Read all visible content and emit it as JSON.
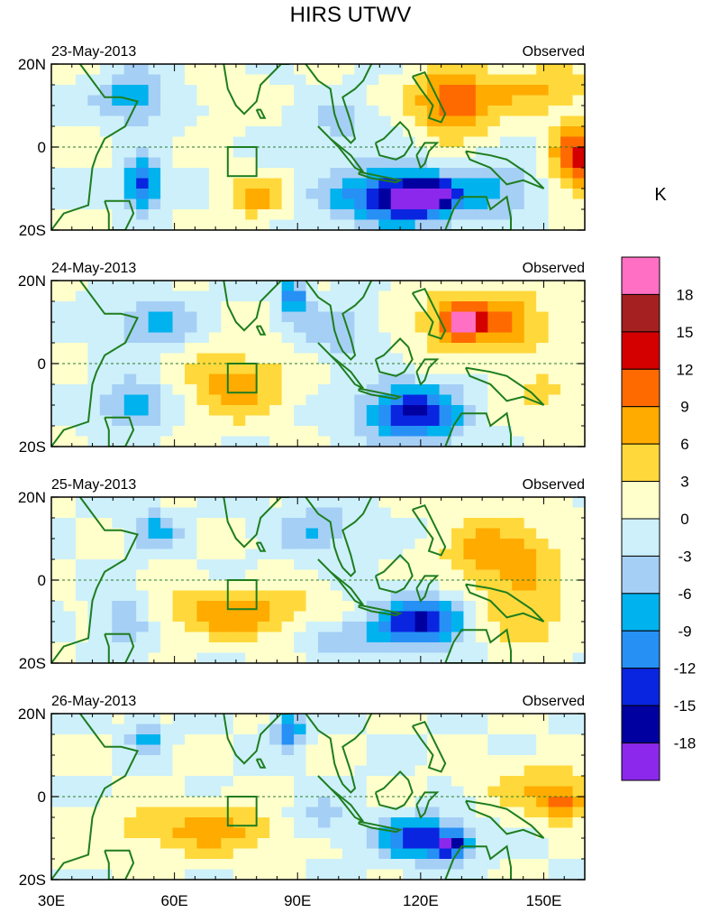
{
  "chart_data": {
    "type": "heatmap",
    "title": "HIRS UTWV",
    "unit_label": "K",
    "x_ticks": [
      "30E",
      "60E",
      "90E",
      "120E",
      "150E"
    ],
    "x_tick_values": [
      30,
      60,
      90,
      120,
      150
    ],
    "xlim": [
      30,
      160
    ],
    "y_ticks": [
      "20N",
      "0",
      "20S"
    ],
    "y_tick_values": [
      20,
      0,
      -20
    ],
    "ylim": [
      -20,
      20
    ],
    "colorbar": {
      "labels": [
        "18",
        "15",
        "12",
        "9",
        "6",
        "3",
        "0",
        "-3",
        "-6",
        "-9",
        "-12",
        "-15",
        "-18"
      ],
      "colors": [
        "#ff6fc4",
        "#a52020",
        "#d40000",
        "#ff6a00",
        "#ffab00",
        "#ffd93b",
        "#ffffcc",
        "#cdf0fa",
        "#a6cff5",
        "#00b2ee",
        "#2690f5",
        "#0a25e0",
        "#0000a0",
        "#8c28eb"
      ]
    },
    "target_box": {
      "lon": [
        73,
        80
      ],
      "lat": [
        -7,
        0
      ]
    },
    "panels": [
      {
        "date": "23-May-2013",
        "label": "Observed",
        "blobs": [
          {
            "lon": 115,
            "lat": -12,
            "rx": 16,
            "ry": 7,
            "v": -16
          },
          {
            "lon": 120,
            "lat": -12,
            "rx": 7,
            "ry": 3,
            "v": -19
          },
          {
            "lon": 52,
            "lat": -9,
            "rx": 4,
            "ry": 6,
            "v": -15
          },
          {
            "lon": 50,
            "lat": 12,
            "rx": 8,
            "ry": 6,
            "v": -9
          },
          {
            "lon": 80,
            "lat": -12,
            "rx": 8,
            "ry": 5,
            "v": 7
          },
          {
            "lon": 128,
            "lat": 11,
            "rx": 10,
            "ry": 8,
            "v": 12
          },
          {
            "lon": 158,
            "lat": -3,
            "rx": 6,
            "ry": 8,
            "v": 13
          },
          {
            "lon": 150,
            "lat": 14,
            "rx": 12,
            "ry": 6,
            "v": 6
          },
          {
            "lon": 72,
            "lat": 12,
            "rx": 8,
            "ry": 6,
            "v": 2
          },
          {
            "lon": 100,
            "lat": 5,
            "rx": 10,
            "ry": 6,
            "v": -4
          },
          {
            "lon": 140,
            "lat": -10,
            "rx": 8,
            "ry": 6,
            "v": -6
          }
        ]
      },
      {
        "date": "24-May-2013",
        "label": "Observed",
        "blobs": [
          {
            "lon": 118,
            "lat": -12,
            "rx": 12,
            "ry": 7,
            "v": -15
          },
          {
            "lon": 89,
            "lat": 16,
            "rx": 3,
            "ry": 4,
            "v": -13
          },
          {
            "lon": 55,
            "lat": 10,
            "rx": 10,
            "ry": 6,
            "v": -7
          },
          {
            "lon": 50,
            "lat": -10,
            "rx": 8,
            "ry": 6,
            "v": -8
          },
          {
            "lon": 75,
            "lat": -5,
            "rx": 12,
            "ry": 8,
            "v": 8
          },
          {
            "lon": 135,
            "lat": 10,
            "rx": 16,
            "ry": 8,
            "v": 10
          },
          {
            "lon": 130,
            "lat": 10,
            "rx": 4,
            "ry": 3,
            "v": 14
          },
          {
            "lon": 100,
            "lat": 8,
            "rx": 10,
            "ry": 7,
            "v": -5
          },
          {
            "lon": 150,
            "lat": -8,
            "rx": 10,
            "ry": 6,
            "v": 4
          }
        ]
      },
      {
        "date": "25-May-2013",
        "label": "Observed",
        "blobs": [
          {
            "lon": 120,
            "lat": -10,
            "rx": 12,
            "ry": 6,
            "v": -15
          },
          {
            "lon": 75,
            "lat": -8,
            "rx": 20,
            "ry": 6,
            "v": 8
          },
          {
            "lon": 48,
            "lat": -10,
            "rx": 6,
            "ry": 6,
            "v": -8
          },
          {
            "lon": 55,
            "lat": 12,
            "rx": 6,
            "ry": 5,
            "v": -7
          },
          {
            "lon": 95,
            "lat": 12,
            "rx": 10,
            "ry": 6,
            "v": -6
          },
          {
            "lon": 140,
            "lat": 6,
            "rx": 14,
            "ry": 10,
            "v": 8
          },
          {
            "lon": 145,
            "lat": -10,
            "rx": 10,
            "ry": 7,
            "v": 6
          },
          {
            "lon": 100,
            "lat": -14,
            "rx": 10,
            "ry": 4,
            "v": -6
          }
        ]
      },
      {
        "date": "26-May-2013",
        "label": "Observed",
        "blobs": [
          {
            "lon": 120,
            "lat": -10,
            "rx": 10,
            "ry": 5,
            "v": -15
          },
          {
            "lon": 128,
            "lat": -12,
            "rx": 4,
            "ry": 3,
            "v": -13
          },
          {
            "lon": 68,
            "lat": -8,
            "rx": 24,
            "ry": 6,
            "v": 7
          },
          {
            "lon": 53,
            "lat": 14,
            "rx": 4,
            "ry": 4,
            "v": -8
          },
          {
            "lon": 88,
            "lat": 16,
            "rx": 4,
            "ry": 4,
            "v": -12
          },
          {
            "lon": 150,
            "lat": 2,
            "rx": 14,
            "ry": 6,
            "v": 6
          },
          {
            "lon": 95,
            "lat": -6,
            "rx": 10,
            "ry": 6,
            "v": -5
          },
          {
            "lon": 155,
            "lat": -2,
            "rx": 5,
            "ry": 4,
            "v": 9
          }
        ]
      }
    ]
  }
}
